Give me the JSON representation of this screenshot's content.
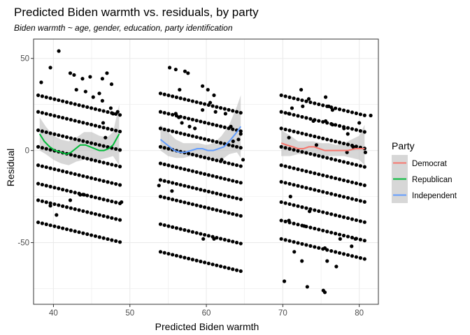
{
  "chart_data": {
    "type": "scatter",
    "title": "Predicted Biden warmth vs. residuals, by party",
    "subtitle": "Biden warmth ~ age, gender, education, party identification",
    "xlabel": "Predicted Biden warmth",
    "ylabel": "Residual",
    "xlim": [
      37.4,
      82.5
    ],
    "ylim": [
      -83.5,
      60.5
    ],
    "x_ticks": [
      40,
      50,
      60,
      70,
      80
    ],
    "y_ticks": [
      -50,
      0,
      50
    ],
    "x_tick_labels": [
      "40",
      "50",
      "60",
      "70",
      "80"
    ],
    "y_tick_labels": [
      "-50",
      "0",
      "50"
    ],
    "grid": true,
    "legend": {
      "title": "Party",
      "position": "right",
      "entries": [
        "Democrat",
        "Republican",
        "Independent"
      ]
    },
    "colors": {
      "Democrat": "#F8766D",
      "Republican": "#00BA38",
      "Independent": "#619CFF",
      "points": "#000000",
      "ribbon": "#BDBDBD",
      "panel_border": "#333333",
      "grid": "#EBEBEB"
    },
    "series": [
      {
        "name": "Republican",
        "x_range": [
          38.0,
          48.7
        ],
        "band_start_residuals": [
          30,
          21,
          11,
          2,
          -8,
          -18,
          -27,
          -39
        ],
        "scatter": [
          [
            40.7,
            54
          ],
          [
            39.6,
            45
          ],
          [
            42.2,
            42
          ],
          [
            42.7,
            41
          ],
          [
            43.8,
            39
          ],
          [
            44.8,
            40
          ],
          [
            46.4,
            39
          ],
          [
            47.0,
            42
          ],
          [
            47.6,
            36
          ],
          [
            38.4,
            37
          ],
          [
            43.0,
            33
          ],
          [
            44.2,
            32
          ],
          [
            45.2,
            29
          ],
          [
            46.0,
            31
          ],
          [
            46.4,
            27
          ],
          [
            46.5,
            15
          ],
          [
            47.5,
            23
          ],
          [
            47.8,
            20
          ],
          [
            48.4,
            21
          ],
          [
            46.8,
            7
          ],
          [
            48.9,
            -28
          ],
          [
            43.5,
            -24
          ],
          [
            44.0,
            -24
          ],
          [
            42.2,
            -27
          ],
          [
            39.6,
            -30
          ],
          [
            40.4,
            -35
          ]
        ],
        "smooth": [
          [
            38.2,
            9
          ],
          [
            38.8,
            5
          ],
          [
            39.5,
            2
          ],
          [
            40.2,
            0
          ],
          [
            41.0,
            -1
          ],
          [
            41.7,
            -2
          ],
          [
            42.3,
            -1
          ],
          [
            42.9,
            1
          ],
          [
            43.5,
            3
          ],
          [
            44.2,
            3
          ],
          [
            44.8,
            2
          ],
          [
            45.4,
            1
          ],
          [
            46.0,
            0
          ],
          [
            46.6,
            0
          ],
          [
            47.2,
            1
          ],
          [
            47.8,
            3
          ],
          [
            48.6,
            9
          ]
        ],
        "ribbon_low": [
          [
            38.2,
            0
          ],
          [
            39.0,
            -2
          ],
          [
            40.0,
            -5
          ],
          [
            41.0,
            -7
          ],
          [
            42.0,
            -8
          ],
          [
            43.0,
            -6
          ],
          [
            44.0,
            -5
          ],
          [
            45.0,
            -5
          ],
          [
            46.0,
            -5
          ],
          [
            47.0,
            -4
          ],
          [
            47.8,
            -3
          ],
          [
            48.6,
            -8
          ]
        ],
        "ribbon_high": [
          [
            38.2,
            18
          ],
          [
            39.0,
            13
          ],
          [
            40.0,
            8
          ],
          [
            41.0,
            6
          ],
          [
            42.0,
            5
          ],
          [
            43.0,
            7
          ],
          [
            44.0,
            10
          ],
          [
            45.0,
            10
          ],
          [
            46.0,
            8
          ],
          [
            47.0,
            7
          ],
          [
            47.8,
            10
          ],
          [
            48.6,
            25
          ]
        ]
      },
      {
        "name": "Independent",
        "x_range": [
          54.0,
          64.5
        ],
        "band_start_residuals": [
          31,
          21,
          12,
          2,
          -7,
          -16,
          -25,
          -40,
          -55
        ],
        "scatter": [
          [
            55.2,
            45
          ],
          [
            56.0,
            44
          ],
          [
            57.2,
            43
          ],
          [
            57.6,
            42
          ],
          [
            56.5,
            33
          ],
          [
            59.5,
            35
          ],
          [
            60.2,
            33
          ],
          [
            61.0,
            30
          ],
          [
            60.5,
            26
          ],
          [
            62.5,
            20
          ],
          [
            61.2,
            21
          ],
          [
            59.5,
            22
          ],
          [
            56.0,
            20
          ],
          [
            56.4,
            18
          ],
          [
            56.8,
            15
          ],
          [
            57.8,
            13
          ],
          [
            58.5,
            12
          ],
          [
            63.2,
            13
          ],
          [
            64.5,
            9
          ],
          [
            64.2,
            6
          ],
          [
            63.5,
            5
          ],
          [
            62.0,
            -5
          ],
          [
            64.8,
            -5
          ],
          [
            53.8,
            -19
          ],
          [
            55.5,
            -22
          ],
          [
            59.6,
            -48
          ],
          [
            61.0,
            -48
          ]
        ],
        "smooth": [
          [
            54.0,
            6
          ],
          [
            54.6,
            4
          ],
          [
            55.2,
            2
          ],
          [
            55.8,
            0
          ],
          [
            56.5,
            -1
          ],
          [
            57.2,
            -1
          ],
          [
            58.0,
            0
          ],
          [
            58.8,
            1
          ],
          [
            59.5,
            1
          ],
          [
            60.2,
            0
          ],
          [
            60.9,
            0
          ],
          [
            61.6,
            1
          ],
          [
            62.3,
            2
          ],
          [
            63.0,
            5
          ],
          [
            63.8,
            9
          ],
          [
            64.5,
            13
          ]
        ],
        "ribbon_low": [
          [
            54.0,
            0
          ],
          [
            55.0,
            -3
          ],
          [
            56.0,
            -4
          ],
          [
            57.0,
            -4
          ],
          [
            58.0,
            -3
          ],
          [
            59.0,
            -2
          ],
          [
            60.0,
            -3
          ],
          [
            61.0,
            -4
          ],
          [
            62.0,
            -5
          ],
          [
            63.0,
            -2
          ],
          [
            64.0,
            -1
          ],
          [
            64.5,
            -4
          ]
        ],
        "ribbon_high": [
          [
            54.0,
            14
          ],
          [
            55.0,
            10
          ],
          [
            56.0,
            6
          ],
          [
            57.0,
            4
          ],
          [
            58.0,
            4
          ],
          [
            59.0,
            4
          ],
          [
            60.0,
            3
          ],
          [
            61.0,
            4
          ],
          [
            62.0,
            8
          ],
          [
            63.0,
            14
          ],
          [
            64.0,
            24
          ],
          [
            64.5,
            30
          ]
        ]
      },
      {
        "name": "Democrat",
        "x_range": [
          69.8,
          80.7
        ],
        "band_start_residuals": [
          30,
          21,
          12,
          2,
          -8,
          -17,
          -28,
          -38,
          -48
        ],
        "scatter": [
          [
            72.4,
            33
          ],
          [
            73.4,
            28
          ],
          [
            72.6,
            24
          ],
          [
            71.2,
            23
          ],
          [
            70.8,
            20
          ],
          [
            74.0,
            16
          ],
          [
            75.6,
            16
          ],
          [
            76.5,
            14
          ],
          [
            70.8,
            7
          ],
          [
            74.4,
            3
          ],
          [
            78.4,
            -1
          ],
          [
            80.8,
            -1
          ],
          [
            81.5,
            19
          ],
          [
            80.0,
            15
          ],
          [
            79.2,
            2
          ],
          [
            75.6,
            29
          ],
          [
            76.0,
            24
          ],
          [
            76.5,
            22
          ],
          [
            78.0,
            12
          ],
          [
            78.5,
            9
          ],
          [
            73.5,
            -33
          ],
          [
            72.8,
            -41
          ],
          [
            77.5,
            -48
          ],
          [
            75.5,
            -53
          ],
          [
            75.8,
            -60
          ],
          [
            77.0,
            -63
          ],
          [
            79.0,
            -52
          ],
          [
            79.5,
            -48
          ],
          [
            71.5,
            -55
          ],
          [
            72.5,
            -60
          ],
          [
            73.2,
            -74
          ],
          [
            75.3,
            -76
          ],
          [
            75.5,
            -77
          ],
          [
            70.2,
            -71
          ],
          [
            70.8,
            -38
          ],
          [
            71.0,
            -25
          ]
        ],
        "smooth": [
          [
            69.8,
            4
          ],
          [
            70.5,
            3
          ],
          [
            71.3,
            2
          ],
          [
            72.0,
            1
          ],
          [
            72.7,
            1
          ],
          [
            73.4,
            2
          ],
          [
            74.1,
            2
          ],
          [
            74.8,
            1
          ],
          [
            75.5,
            0
          ],
          [
            76.5,
            0
          ],
          [
            77.5,
            0
          ],
          [
            78.5,
            0
          ],
          [
            79.5,
            1
          ],
          [
            80.7,
            1
          ]
        ],
        "ribbon_low": [
          [
            69.8,
            -3
          ],
          [
            71.0,
            -3
          ],
          [
            72.0,
            -2
          ],
          [
            73.0,
            -2
          ],
          [
            74.0,
            -2
          ],
          [
            75.0,
            -3
          ],
          [
            76.0,
            -3
          ],
          [
            77.0,
            -3
          ],
          [
            78.0,
            -3
          ],
          [
            79.0,
            -4
          ],
          [
            80.0,
            -5
          ],
          [
            80.7,
            -8
          ]
        ],
        "ribbon_high": [
          [
            69.8,
            11
          ],
          [
            71.0,
            8
          ],
          [
            72.0,
            5
          ],
          [
            73.0,
            5
          ],
          [
            74.0,
            5
          ],
          [
            75.0,
            4
          ],
          [
            76.0,
            4
          ],
          [
            77.0,
            3
          ],
          [
            78.0,
            4
          ],
          [
            79.0,
            6
          ],
          [
            80.0,
            8
          ],
          [
            80.7,
            14
          ]
        ]
      }
    ]
  }
}
